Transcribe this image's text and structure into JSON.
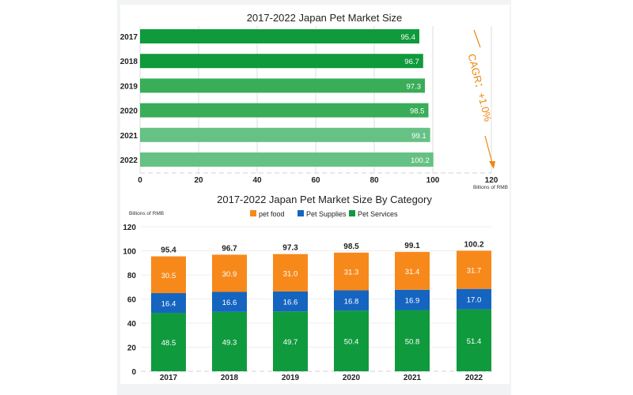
{
  "chart_data": [
    {
      "type": "bar",
      "orientation": "horizontal",
      "title": "2017-2022 Japan Pet Market Size",
      "categories": [
        "2017",
        "2018",
        "2019",
        "2020",
        "2021",
        "2022"
      ],
      "values": [
        95.4,
        96.7,
        97.3,
        98.5,
        99.1,
        100.2
      ],
      "value_labels": [
        "95.4",
        "96.7",
        "97.3",
        "98.5",
        "99.1",
        "100.2"
      ],
      "xlim": [
        0,
        120
      ],
      "xticks": [
        "0",
        "20",
        "40",
        "60",
        "80",
        "100",
        "120"
      ],
      "xlabel": "Billions of RMB",
      "bar_colors": [
        "#0f9a3c",
        "#0f9a3c",
        "#39ad58",
        "#39ad58",
        "#66c184",
        "#66c184"
      ],
      "annotation": "CAGR：+1.0%"
    },
    {
      "type": "bar",
      "stacked": true,
      "title": "2017-2022 Japan Pet Market Size By Category",
      "ylabel": "Billions of RMB",
      "categories": [
        "2017",
        "2018",
        "2019",
        "2020",
        "2021",
        "2022"
      ],
      "ylim": [
        0,
        120
      ],
      "yticks": [
        "0",
        "20",
        "40",
        "60",
        "80",
        "100",
        "120"
      ],
      "totals": [
        "95.4",
        "96.7",
        "97.3",
        "98.5",
        "99.1",
        "100.2"
      ],
      "series": [
        {
          "name": "Pet Services",
          "color": "#109a3e",
          "values": [
            48.5,
            49.3,
            49.7,
            50.4,
            50.8,
            51.4
          ],
          "labels": [
            "48.5",
            "49.3",
            "49.7",
            "50.4",
            "50.8",
            "51.4"
          ]
        },
        {
          "name": "Pet Supplies",
          "color": "#1565c0",
          "values": [
            16.4,
            16.6,
            16.6,
            16.8,
            16.9,
            17.0
          ],
          "labels": [
            "16.4",
            "16.6",
            "16.6",
            "16.8",
            "16.9",
            "17.0"
          ]
        },
        {
          "name": "pet food",
          "color": "#f7891b",
          "values": [
            30.5,
            30.9,
            31.0,
            31.3,
            31.4,
            31.7
          ],
          "labels": [
            "30.5",
            "30.9",
            "31.0",
            "31.3",
            "31.4",
            "31.7"
          ]
        }
      ],
      "legend_order": [
        "pet food",
        "Pet Supplies",
        "Pet Services"
      ]
    }
  ]
}
